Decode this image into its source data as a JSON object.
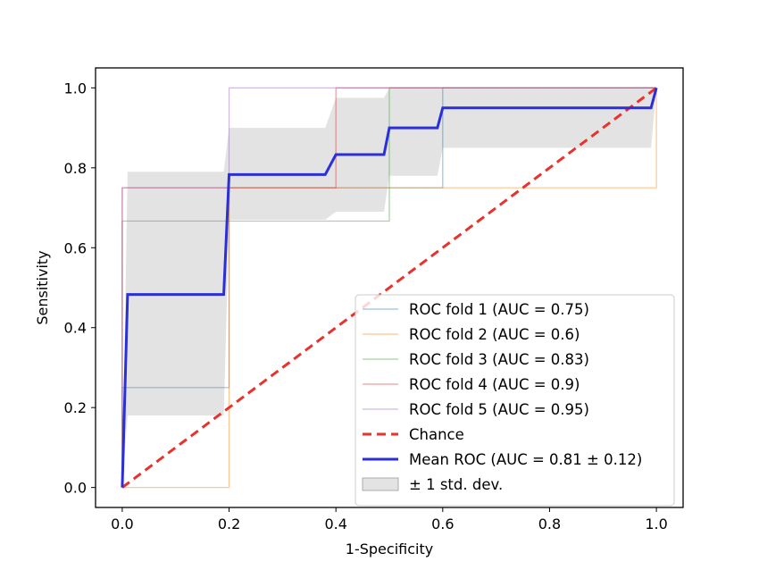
{
  "chart_data": {
    "type": "line",
    "title": "",
    "xlabel": "1-Specificity",
    "ylabel": "Sensitivity",
    "xlim": [
      -0.05,
      1.05
    ],
    "ylim": [
      -0.05,
      1.05
    ],
    "xticks": [
      "0.0",
      "0.2",
      "0.4",
      "0.6",
      "0.8",
      "1.0"
    ],
    "yticks": [
      "0.0",
      "0.2",
      "0.4",
      "0.6",
      "0.8",
      "1.0"
    ],
    "grid": false,
    "legend_position": "lower-right",
    "series": [
      {
        "name": "ROC fold 1 (AUC = 0.75)",
        "color": "#1f77b4",
        "style": "thin",
        "x": [
          0.0,
          0.0,
          0.2,
          0.2,
          0.6,
          0.6,
          1.0
        ],
        "y": [
          0.0,
          0.25,
          0.25,
          0.75,
          0.75,
          1.0,
          1.0
        ]
      },
      {
        "name": "ROC fold 2 (AUC = 0.6)",
        "color": "#ff7f0e",
        "style": "thin",
        "x": [
          0.0,
          0.2,
          0.2,
          1.0,
          1.0
        ],
        "y": [
          0.0,
          0.0,
          0.75,
          0.75,
          1.0
        ]
      },
      {
        "name": "ROC fold 3 (AUC = 0.83)",
        "color": "#2ca02c",
        "style": "thin",
        "x": [
          0.0,
          0.0,
          0.5,
          0.5,
          1.0
        ],
        "y": [
          0.0,
          0.6667,
          0.6667,
          1.0,
          1.0
        ]
      },
      {
        "name": "ROC fold 4 (AUC = 0.9)",
        "color": "#d62728",
        "style": "thin",
        "x": [
          0.0,
          0.0,
          0.4,
          0.4,
          1.0
        ],
        "y": [
          0.0,
          0.75,
          0.75,
          1.0,
          1.0
        ]
      },
      {
        "name": "ROC fold 5 (AUC = 0.95)",
        "color": "#9467bd",
        "style": "thin",
        "x": [
          0.0,
          0.0,
          0.2,
          0.2,
          1.0
        ],
        "y": [
          0.0,
          0.75,
          0.75,
          1.0,
          1.0
        ]
      },
      {
        "name": "Chance",
        "color": "#e8322e",
        "style": "dashed",
        "x": [
          0.0,
          1.0
        ],
        "y": [
          0.0,
          1.0
        ]
      },
      {
        "name": "Mean ROC (AUC = 0.81 ± 0.12)",
        "color": "#2b2fd9",
        "style": "thick",
        "x": [
          0.0,
          0.01,
          0.19,
          0.2,
          0.38,
          0.4,
          0.49,
          0.5,
          0.59,
          0.6,
          0.99,
          1.0
        ],
        "y": [
          0.0,
          0.483,
          0.483,
          0.783,
          0.783,
          0.833,
          0.833,
          0.9,
          0.9,
          0.95,
          0.95,
          1.0
        ]
      }
    ],
    "band": {
      "name": "± 1 std. dev.",
      "color": "#c8c8c8",
      "x": [
        0.0,
        0.01,
        0.19,
        0.2,
        0.38,
        0.4,
        0.49,
        0.5,
        0.59,
        0.6,
        0.99,
        1.0
      ],
      "lower": [
        0.0,
        0.18,
        0.18,
        0.67,
        0.67,
        0.69,
        0.69,
        0.78,
        0.78,
        0.85,
        0.85,
        1.0
      ],
      "upper": [
        0.0,
        0.79,
        0.79,
        0.9,
        0.9,
        0.975,
        0.975,
        1.0,
        1.0,
        1.0,
        1.0,
        1.0
      ]
    }
  }
}
